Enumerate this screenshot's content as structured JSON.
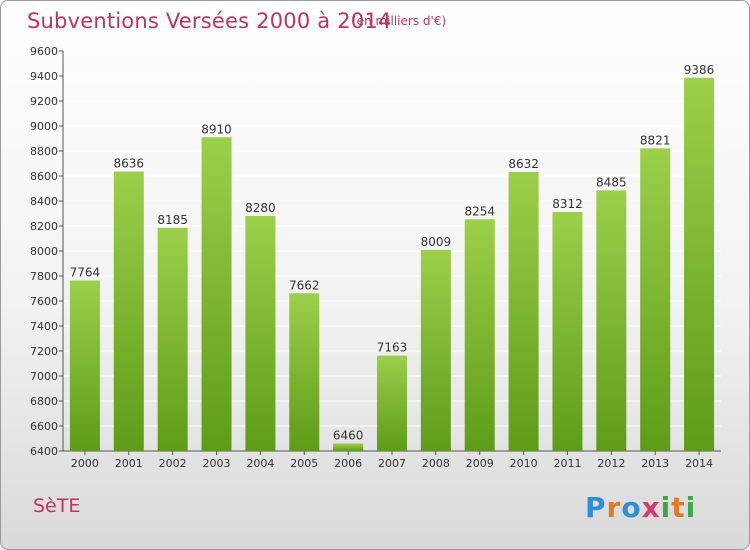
{
  "title": "Subventions Versées 2000 à 2014",
  "subtitle": "(en milliers d'€)",
  "place": "SèTE",
  "logo": {
    "letters": [
      "P",
      "r",
      "o",
      "x",
      "i",
      "t",
      "i"
    ],
    "colors": [
      "#2e8fd6",
      "#e07b1f",
      "#2e8fd6",
      "#d63a72",
      "#3aa84a",
      "#e07b1f",
      "#3aa84a"
    ]
  },
  "colors": {
    "bar_top": "#9ccf4a",
    "bar_bottom": "#5e9c17",
    "text": "#c0335a",
    "grid": "#ffffff"
  },
  "chart_data": {
    "type": "bar",
    "categories": [
      "2000",
      "2001",
      "2002",
      "2003",
      "2004",
      "2005",
      "2006",
      "2007",
      "2008",
      "2009",
      "2010",
      "2011",
      "2012",
      "2013",
      "2014"
    ],
    "values": [
      7764,
      8636,
      8185,
      8910,
      8280,
      7662,
      6460,
      7163,
      8009,
      8254,
      8632,
      8312,
      8485,
      8821,
      9386
    ],
    "ylim": [
      6400,
      9600
    ],
    "yticks": [
      6400,
      6600,
      6800,
      7000,
      7200,
      7400,
      7600,
      7800,
      8000,
      8200,
      8400,
      8600,
      8800,
      9000,
      9200,
      9400,
      9600
    ],
    "grid": true
  }
}
